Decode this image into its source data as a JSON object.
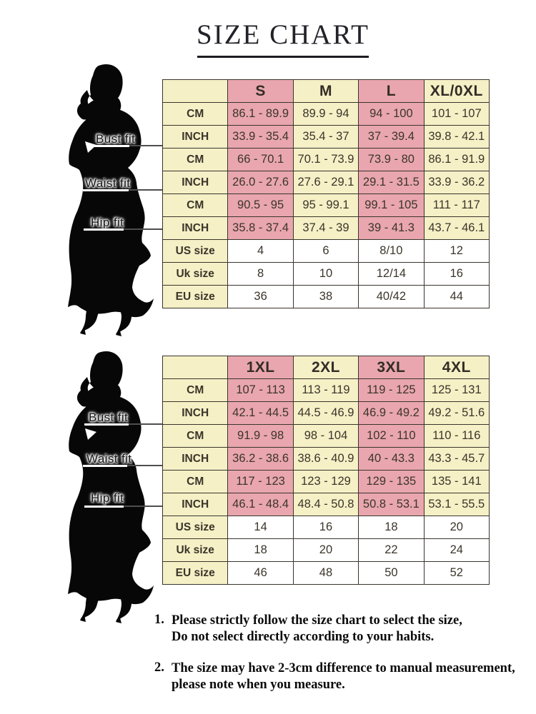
{
  "title": {
    "text": "SIZE CHART"
  },
  "figure": {
    "icon": "woman-silhouette-icon",
    "fit_labels": [
      "Bust fit",
      "Waist fit",
      "Hip fit"
    ]
  },
  "tables": [
    {
      "columns": [
        "",
        "S",
        "M",
        "L",
        "XL/0XL"
      ],
      "rows": [
        {
          "label": "CM",
          "band": "measure",
          "values": [
            "86.1 - 89.9",
            "89.9 - 94",
            "94 - 100",
            "101 - 107"
          ]
        },
        {
          "label": "INCH",
          "band": "measure",
          "values": [
            "33.9 - 35.4",
            "35.4 - 37",
            "37 - 39.4",
            "39.8 - 42.1"
          ]
        },
        {
          "label": "CM",
          "band": "measure",
          "values": [
            "66 - 70.1",
            "70.1 - 73.9",
            "73.9 - 80",
            "86.1 - 91.9"
          ]
        },
        {
          "label": "INCH",
          "band": "measure",
          "values": [
            "26.0 - 27.6",
            "27.6 - 29.1",
            "29.1 - 31.5",
            "33.9 - 36.2"
          ]
        },
        {
          "label": "CM",
          "band": "measure",
          "values": [
            "90.5 - 95",
            "95 - 99.1",
            "99.1 - 105",
            "111 - 117"
          ]
        },
        {
          "label": "INCH",
          "band": "measure",
          "values": [
            "35.8 - 37.4",
            "37.4 - 39",
            "39 - 41.3",
            "43.7 - 46.1"
          ]
        },
        {
          "label": "US size",
          "band": "size",
          "values": [
            "4",
            "6",
            "8/10",
            "12"
          ]
        },
        {
          "label": "Uk size",
          "band": "size",
          "values": [
            "8",
            "10",
            "12/14",
            "16"
          ]
        },
        {
          "label": "EU size",
          "band": "size",
          "values": [
            "36",
            "38",
            "40/42",
            "44"
          ]
        }
      ]
    },
    {
      "columns": [
        "",
        "1XL",
        "2XL",
        "3XL",
        "4XL"
      ],
      "rows": [
        {
          "label": "CM",
          "band": "measure",
          "values": [
            "107 - 113",
            "113 - 119",
            "119 - 125",
            "125 - 131"
          ]
        },
        {
          "label": "INCH",
          "band": "measure",
          "values": [
            "42.1 - 44.5",
            "44.5 - 46.9",
            "46.9 - 49.2",
            "49.2 - 51.6"
          ]
        },
        {
          "label": "CM",
          "band": "measure",
          "values": [
            "91.9 - 98",
            "98 - 104",
            "102 - 110",
            "110 - 116"
          ]
        },
        {
          "label": "INCH",
          "band": "measure",
          "values": [
            "36.2 - 38.6",
            "38.6 - 40.9",
            "40 - 43.3",
            "43.3 - 45.7"
          ]
        },
        {
          "label": "CM",
          "band": "measure",
          "values": [
            "117 - 123",
            "123 - 129",
            "129 - 135",
            "135 - 141"
          ]
        },
        {
          "label": "INCH",
          "band": "measure",
          "values": [
            "46.1 - 48.4",
            "48.4 - 50.8",
            "50.8 - 53.1",
            "53.1 - 55.5"
          ]
        },
        {
          "label": "US size",
          "band": "size",
          "values": [
            "14",
            "16",
            "18",
            "20"
          ]
        },
        {
          "label": "Uk size",
          "band": "size",
          "values": [
            "18",
            "20",
            "22",
            "24"
          ]
        },
        {
          "label": "EU size",
          "band": "size",
          "values": [
            "46",
            "48",
            "50",
            "52"
          ]
        }
      ]
    }
  ],
  "notes": [
    {
      "number": "1.",
      "lines": [
        "Please strictly follow the size chart to select the size,",
        "Do not select directly according to your habits."
      ]
    },
    {
      "number": "2.",
      "lines": [
        "The size may have 2-3cm difference  to manual measurement,",
        "please note when you measure."
      ]
    }
  ],
  "colors": {
    "cell_yellow": "#f5f0c6",
    "cell_pink": "#e9a6ae",
    "table_border": "#3a352d",
    "pointer_line": "#4e4e4e",
    "title_text": "#222228"
  }
}
